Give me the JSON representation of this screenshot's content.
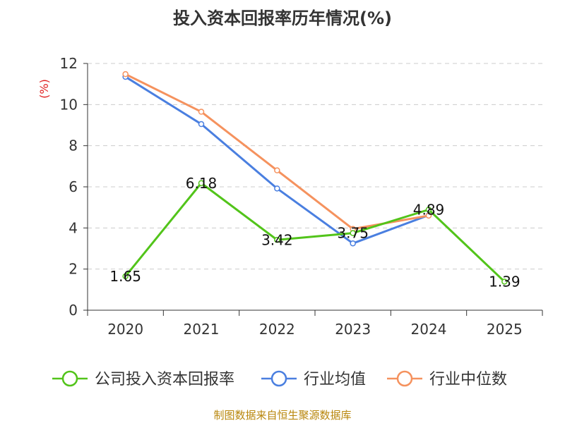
{
  "chart_data": {
    "type": "line",
    "title": "投入资本回报率历年情况(%)",
    "ylabel": "(%)",
    "xlabel": "",
    "categories": [
      "2020",
      "2021",
      "2022",
      "2023",
      "2024",
      "2025"
    ],
    "ylim": [
      0,
      12
    ],
    "yticks": [
      0,
      2,
      4,
      6,
      8,
      10,
      12
    ],
    "grid": true,
    "legend_position": "bottom",
    "series": [
      {
        "name": "公司投入资本回报率",
        "color": "#52c41a",
        "values": [
          1.65,
          6.18,
          3.42,
          3.75,
          4.89,
          1.39
        ],
        "labels": [
          "1.65",
          "6.18",
          "3.42",
          "3.75",
          "4.89",
          "1.39"
        ]
      },
      {
        "name": "行业均值",
        "color": "#4a7fe0",
        "values": [
          11.35,
          9.05,
          5.92,
          3.25,
          4.62,
          null
        ]
      },
      {
        "name": "行业中位数",
        "color": "#f5925e",
        "values": [
          11.48,
          9.65,
          6.8,
          3.95,
          4.6,
          null
        ]
      }
    ],
    "source": "制图数据来自恒生聚源数据库"
  }
}
